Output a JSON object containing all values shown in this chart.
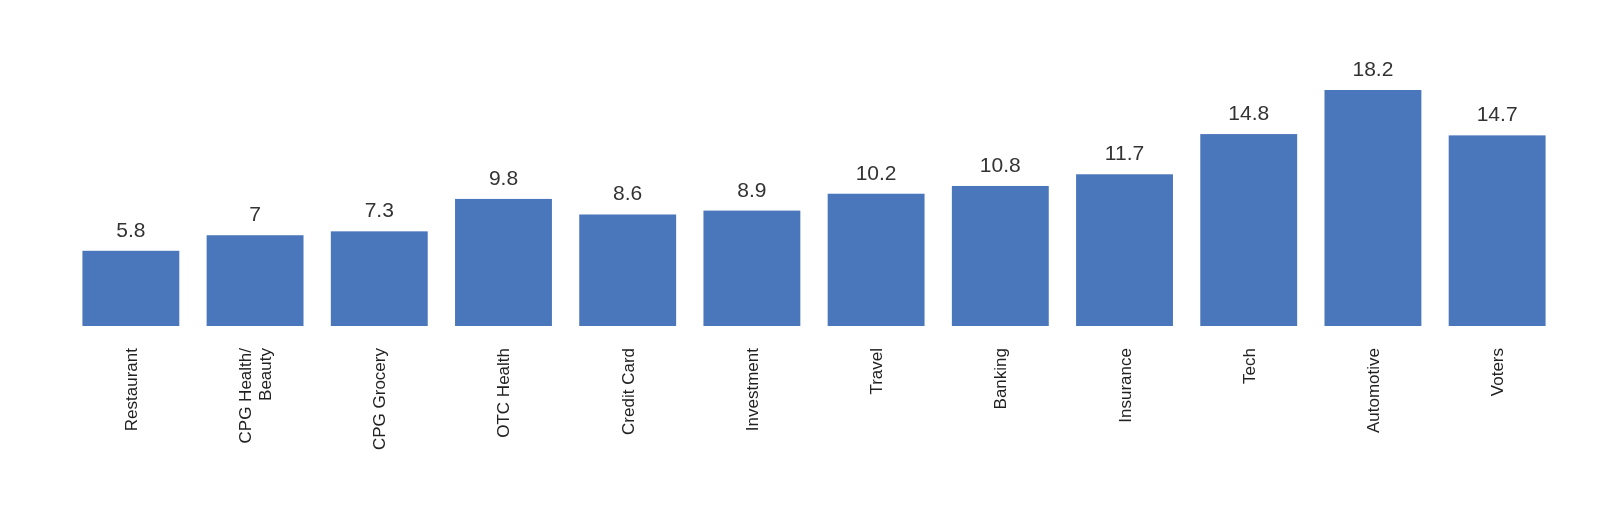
{
  "chart_data": {
    "type": "bar",
    "categories": [
      "Restaurant",
      "CPG Health/ Beauty",
      "CPG Grocery",
      "OTC Health",
      "Credit Card",
      "Investment",
      "Travel",
      "Banking",
      "Insurance",
      "Tech",
      "Automotive",
      "Voters"
    ],
    "values": [
      5.8,
      7,
      7.3,
      9.8,
      8.6,
      8.9,
      10.2,
      10.8,
      11.7,
      14.8,
      18.2,
      14.7
    ],
    "color": "#4a76bb",
    "data_labels": true
  }
}
